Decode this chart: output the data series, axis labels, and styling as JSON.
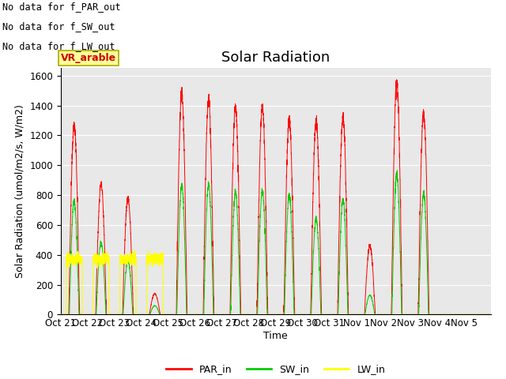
{
  "title": "Solar Radiation",
  "ylabel": "Solar Radiation (umol/m2/s, W/m2)",
  "xlabel": "Time",
  "xlabels": [
    "Oct 21",
    "Oct 22",
    "Oct 23",
    "Oct 24",
    "Oct 25",
    "Oct 26",
    "Oct 27",
    "Oct 28",
    "Oct 29",
    "Oct 30",
    "Oct 31",
    "Nov 1",
    "Nov 2",
    "Nov 3",
    "Nov 4",
    "Nov 5"
  ],
  "ylim": [
    0,
    1650
  ],
  "yticks": [
    0,
    200,
    400,
    600,
    800,
    1000,
    1200,
    1400,
    1600
  ],
  "annotations_top_left": [
    "No data for f_PAR_out",
    "No data for f_SW_out",
    "No data for f_LW_out"
  ],
  "legend_label": "VR_arable",
  "legend_color": "#ffff99",
  "legend_text_color": "#cc0000",
  "background_color": "#e8e8e8",
  "grid_color": "#ffffff",
  "par_color": "#ff0000",
  "sw_color": "#00cc00",
  "lw_color": "#ffff00",
  "title_fontsize": 13,
  "axis_fontsize": 9,
  "tick_fontsize": 8.5,
  "annotation_fontsize": 8.5,
  "par_peaks": [
    1270,
    870,
    780,
    140,
    1480,
    1440,
    1390,
    1400,
    1310,
    1300,
    1320,
    460,
    1560,
    1350,
    0,
    0
  ],
  "sw_peaks": [
    760,
    480,
    360,
    60,
    870,
    870,
    820,
    830,
    800,
    640,
    770,
    130,
    940,
    810,
    0,
    0
  ],
  "lw_active_days": [
    0,
    1,
    2,
    3
  ]
}
